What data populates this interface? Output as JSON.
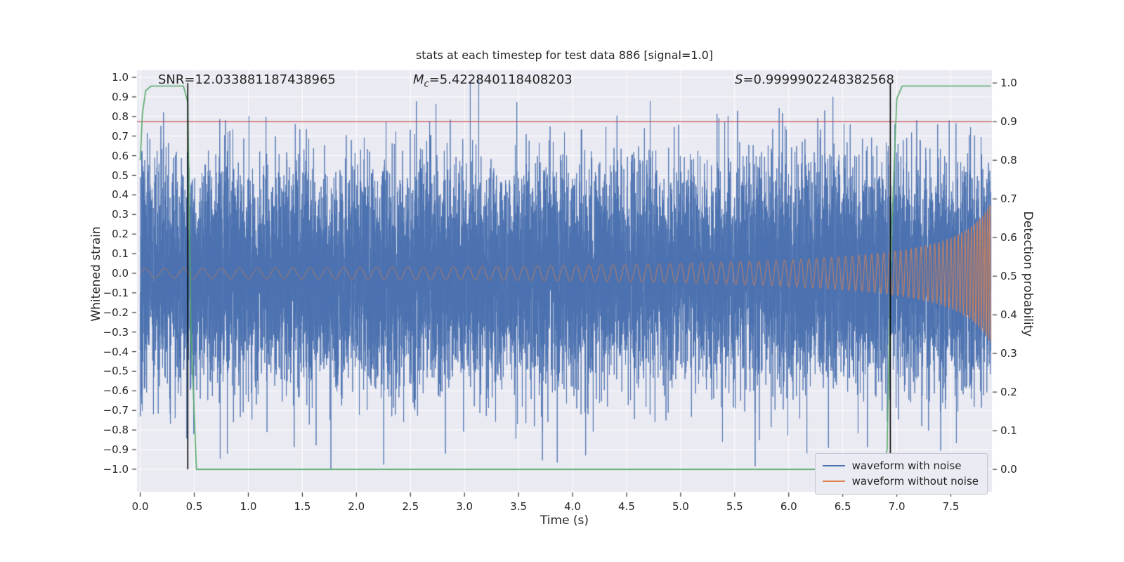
{
  "chart_data": {
    "type": "line",
    "title": "stats at each timestep for test data 886 [signal=1.0]",
    "xlabel": "Time (s)",
    "ylabel_left": "Whitened strain",
    "ylabel_right": "Detection probability",
    "annotations": {
      "snr": "SNR=12.033881187438965",
      "mc_prefix": "M",
      "mc_sub": "c",
      "mc_value": "=5.422840118408203",
      "s_prefix": "S",
      "s_value": "=0.9999902248382568"
    },
    "xlim": [
      -0.03,
      7.88
    ],
    "ylim_left": [
      -1.115,
      1.036
    ],
    "ylim_right": [
      -0.058,
      1.033
    ],
    "grid": true,
    "colors": {
      "plot_bg": "#eaeaf2",
      "grid": "#ffffff",
      "text": "#262626",
      "tick": "#262626"
    },
    "x_ticks": {
      "values": [
        0.0,
        0.5,
        1.0,
        1.5,
        2.0,
        2.5,
        3.0,
        3.5,
        4.0,
        4.5,
        5.0,
        5.5,
        6.0,
        6.5,
        7.0,
        7.5
      ],
      "labels": [
        "0.0",
        "0.5",
        "1.0",
        "1.5",
        "2.0",
        "2.5",
        "3.0",
        "3.5",
        "4.0",
        "4.5",
        "5.0",
        "5.5",
        "6.0",
        "6.5",
        "7.0",
        "7.5"
      ]
    },
    "y_ticks_left": {
      "values": [
        -1.0,
        -0.9,
        -0.8,
        -0.7,
        -0.6,
        -0.5,
        -0.4,
        -0.3,
        -0.2,
        -0.1,
        0.0,
        0.1,
        0.2,
        0.3,
        0.4,
        0.5,
        0.6,
        0.7,
        0.8,
        0.9,
        1.0
      ],
      "labels": [
        "−1.0",
        "−0.9",
        "−0.8",
        "−0.7",
        "−0.6",
        "−0.5",
        "−0.4",
        "−0.3",
        "−0.2",
        "−0.1",
        "0.0",
        "0.1",
        "0.2",
        "0.3",
        "0.4",
        "0.5",
        "0.6",
        "0.7",
        "0.8",
        "0.9",
        "1.0"
      ]
    },
    "y_ticks_right": {
      "values": [
        0.0,
        0.1,
        0.2,
        0.3,
        0.4,
        0.5,
        0.6,
        0.7,
        0.8,
        0.9,
        1.0
      ],
      "labels": [
        "0.0",
        "0.1",
        "0.2",
        "0.3",
        "0.4",
        "0.5",
        "0.6",
        "0.7",
        "0.8",
        "0.9",
        "1.0"
      ]
    },
    "series": {
      "noise": {
        "name": "waveform with noise",
        "color": "#4c72b0",
        "axis": "left",
        "model": {
          "kind": "gaussian",
          "seed": 886,
          "std": 0.28,
          "points": 12000,
          "clip": 1.0,
          "t_start": 0.0,
          "t_end": 7.87
        }
      },
      "signal": {
        "name": "waveform without noise",
        "color": "#dd8452",
        "axis": "left",
        "model": {
          "kind": "chirp",
          "amp0": 0.024,
          "f0": 5.5,
          "t_ref": 8.15,
          "amp_exp": 0.8,
          "f_exp": 0.65,
          "t_start": 0.0,
          "t_end": 7.87,
          "points": 16000
        }
      },
      "detection_probability": {
        "name": "detection probability",
        "color": "#55a868",
        "axis": "right",
        "x": [
          0.0,
          0.02,
          0.05,
          0.1,
          0.4,
          0.44,
          0.47,
          0.52,
          6.87,
          6.91,
          6.95,
          7.0,
          7.05,
          7.87
        ],
        "y": [
          0.8,
          0.92,
          0.98,
          0.992,
          0.992,
          0.95,
          0.35,
          0.0,
          0.0,
          0.05,
          0.6,
          0.96,
          0.992,
          0.992
        ]
      },
      "threshold": {
        "axis": "right",
        "value": 0.9,
        "color": "#c44e52"
      },
      "event_markers": {
        "x": [
          0.44,
          6.94
        ],
        "span_right_axis": [
          0.0,
          1.0
        ],
        "color": "#000000"
      }
    },
    "legend": {
      "position": "lower right",
      "items": [
        {
          "label": "waveform with noise",
          "color": "#4c72b0"
        },
        {
          "label": "waveform without noise",
          "color": "#dd8452"
        }
      ]
    }
  }
}
